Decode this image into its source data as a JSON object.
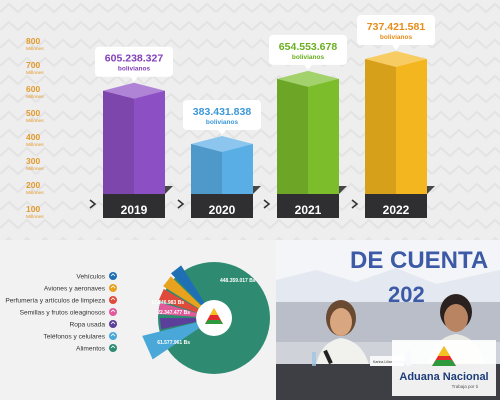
{
  "chart_data": [
    {
      "type": "bar",
      "categories": [
        "2019",
        "2020",
        "2021",
        "2022"
      ],
      "values": [
        605238327,
        383431838,
        654553678,
        737421581
      ],
      "value_labels": [
        "605.238.327",
        "383.431.838",
        "654.553.678",
        "737.421.581"
      ],
      "value_unit": "bolivianos",
      "ylim": [
        100,
        800
      ],
      "y_ticks": [
        "800",
        "700",
        "600",
        "500",
        "400",
        "300",
        "200",
        "100"
      ],
      "y_tick_unit": "Millones",
      "colors": [
        "#8d4fc4",
        "#5aaee6",
        "#7cbd2c",
        "#f4b61e"
      ],
      "value_colors": [
        "#8240b8",
        "#3b98d8",
        "#6aaf1e",
        "#e88c18"
      ],
      "grid": false
    },
    {
      "type": "pie",
      "categories": [
        "Vehículos",
        "Aviones y aeronaves",
        "Perfumería y artículos de limpieza",
        "Semillas y frutos oleaginosos",
        "Ropa usada",
        "Teléfonos y celulares",
        "Alimentos"
      ],
      "slice_labels": [
        "448.359.017 Bs",
        "",
        "",
        "17.346.983 Bs",
        "22.347.477 Bs",
        "",
        "61.577.961 Bs"
      ],
      "colors": [
        "#2e8b72",
        "#1f6fb5",
        "#e8a21e",
        "#e04a3a",
        "#e05a9a",
        "#5b3f9a",
        "#4aa8d8"
      ]
    }
  ],
  "photo": {
    "banner_text": "DE CUENTA",
    "banner_sub": "202",
    "nameplate": "Karina Liliana Serrudo"
  },
  "brand": {
    "name": "Aduana Nacional",
    "tagline": "Trabaja por ti"
  }
}
